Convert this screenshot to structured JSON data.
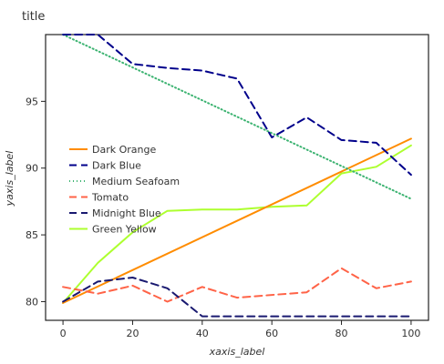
{
  "chart_data": {
    "type": "line",
    "title": "title",
    "xlabel": "xaxis_label",
    "ylabel": "yaxis_label",
    "xlim": [
      -5,
      105
    ],
    "ylim": [
      78.6,
      100
    ],
    "xticks": [
      "0",
      "20",
      "40",
      "60",
      "80",
      "100"
    ],
    "yticks": [
      "80",
      "85",
      "90",
      "95"
    ],
    "grid": false,
    "legend_position": "right",
    "series": [
      {
        "name": "Dark Orange",
        "color": "#FF8C00",
        "dash": "",
        "points": [
          [
            0,
            79.9
          ],
          [
            100,
            92.2
          ]
        ]
      },
      {
        "name": "Dark Blue",
        "color": "#00008B",
        "dash": "8,5",
        "points": [
          [
            0,
            100
          ],
          [
            10,
            100
          ],
          [
            20,
            97.8
          ],
          [
            30,
            97.5
          ],
          [
            40,
            97.3
          ],
          [
            50,
            96.7
          ],
          [
            60,
            92.3
          ],
          [
            70,
            93.8
          ],
          [
            80,
            92.1
          ],
          [
            90,
            91.9
          ],
          [
            100,
            89.5
          ]
        ]
      },
      {
        "name": "Medium Seafoam",
        "color": "#3CB371",
        "dash": "1,3",
        "points": [
          [
            0,
            100
          ],
          [
            100,
            87.7
          ]
        ]
      },
      {
        "name": "Tomato",
        "color": "#FF6347",
        "dash": "8,5",
        "points": [
          [
            0,
            81.1
          ],
          [
            10,
            80.6
          ],
          [
            20,
            81.2
          ],
          [
            30,
            80.0
          ],
          [
            40,
            81.1
          ],
          [
            50,
            80.3
          ],
          [
            60,
            80.5
          ],
          [
            70,
            80.7
          ],
          [
            80,
            82.5
          ],
          [
            90,
            81.0
          ],
          [
            100,
            81.5
          ]
        ]
      },
      {
        "name": "Midnight Blue",
        "color": "#191970",
        "dash": "8,5",
        "points": [
          [
            0,
            80.0
          ],
          [
            10,
            81.5
          ],
          [
            20,
            81.8
          ],
          [
            30,
            81.0
          ],
          [
            40,
            78.9
          ],
          [
            100,
            78.9
          ]
        ]
      },
      {
        "name": "Green Yellow",
        "color": "#ADFF2F",
        "dash": "",
        "points": [
          [
            0,
            79.9
          ],
          [
            10,
            82.9
          ],
          [
            20,
            85.2
          ],
          [
            30,
            86.8
          ],
          [
            40,
            86.9
          ],
          [
            50,
            86.9
          ],
          [
            60,
            87.1
          ],
          [
            70,
            87.2
          ],
          [
            80,
            89.6
          ],
          [
            90,
            90.1
          ],
          [
            100,
            91.7
          ]
        ]
      }
    ]
  }
}
